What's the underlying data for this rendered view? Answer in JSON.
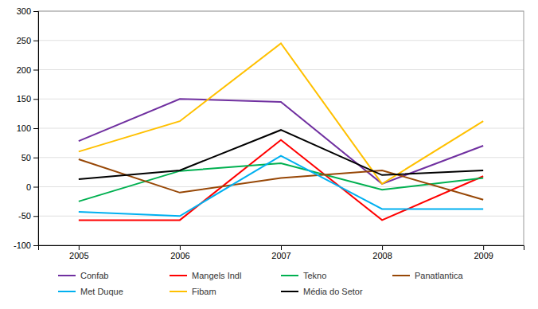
{
  "chart_data": {
    "type": "line",
    "x": [
      2005,
      2006,
      2007,
      2008,
      2009
    ],
    "xlim": [
      2004.6,
      2009.4
    ],
    "xticks": [
      2005,
      2006,
      2007,
      2008,
      2009
    ],
    "ylim": [
      -100,
      300
    ],
    "yticks": [
      -100,
      -50,
      0,
      50,
      100,
      150,
      200,
      250,
      300
    ],
    "grid": true,
    "legend": "bottom",
    "series": [
      {
        "name": "Confab",
        "color": "#7030A0",
        "values": [
          78,
          150,
          145,
          5,
          70
        ]
      },
      {
        "name": "Mangels Indl",
        "color": "#FF0000",
        "values": [
          -57,
          -57,
          80,
          -57,
          18
        ]
      },
      {
        "name": "Tekno",
        "color": "#00B050",
        "values": [
          -25,
          27,
          40,
          -5,
          15
        ]
      },
      {
        "name": "Panatlantica",
        "color": "#974706",
        "values": [
          47,
          -10,
          15,
          28,
          -22
        ]
      },
      {
        "name": "Met Duque",
        "color": "#00B0F0",
        "values": [
          -43,
          -50,
          53,
          -38,
          -38
        ]
      },
      {
        "name": "Fibam",
        "color": "#FFC000",
        "values": [
          60,
          112,
          245,
          5,
          112
        ]
      },
      {
        "name": "Média do Setor",
        "color": "#000000",
        "values": [
          13,
          28,
          97,
          20,
          28
        ]
      }
    ]
  }
}
